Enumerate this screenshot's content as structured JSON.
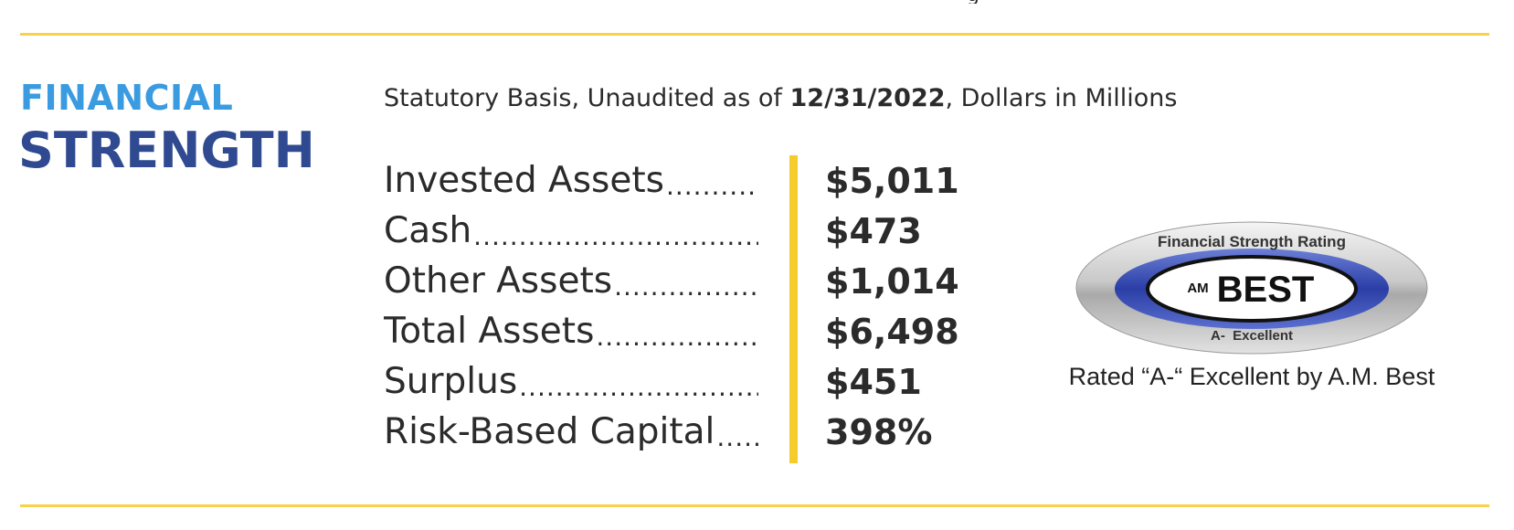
{
  "section": {
    "heading_line1": "FINANCIAL",
    "heading_line2": "STRENGTH"
  },
  "subtitle": {
    "prefix": "Statutory Basis, Unaudited as of ",
    "date": "12/31/2022",
    "suffix": ", Dollars in Millions"
  },
  "financials": [
    {
      "label": "Invested Assets",
      "value": "$5,011"
    },
    {
      "label": "Cash",
      "value": "$473"
    },
    {
      "label": "Other Assets",
      "value": "$1,014"
    },
    {
      "label": "Total Assets",
      "value": "$6,498"
    },
    {
      "label": "Surplus",
      "value": "$451"
    },
    {
      "label": "Risk-Based Capital",
      "value": "398%"
    }
  ],
  "rating_badge": {
    "top_text": "Financial Strength Rating",
    "logo_am": "AM",
    "logo_best": "BEST",
    "bottom_text": "A-  Excellent"
  },
  "rating_caption": "Rated “A-“ Excellent by A.M. Best",
  "colors": {
    "heading_light_blue": "#3a9be0",
    "heading_dark_blue": "#2f4a91",
    "accent_yellow": "#f5cc2c",
    "rule_yellow": "#f5d24a",
    "badge_blue": "#3048b0"
  }
}
